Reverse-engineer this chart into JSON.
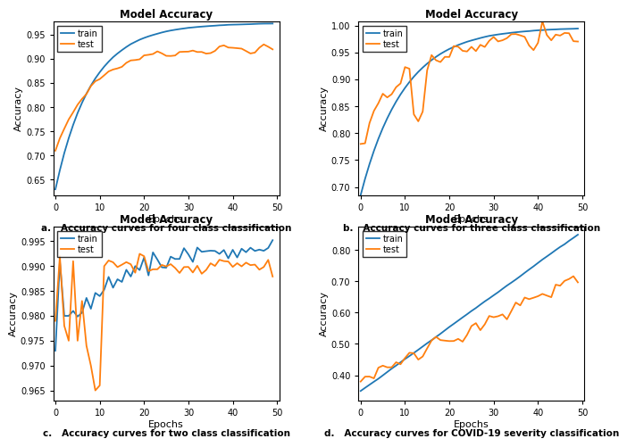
{
  "train_color": "#1f77b4",
  "test_color": "#ff7f0e",
  "xlabel": "Epochs",
  "ylabel": "Accuracy",
  "subplot_title": "Model Accuracy",
  "legend_labels": [
    "train",
    "test"
  ],
  "background_color": "#ffffff",
  "captions": [
    "a.   Accuracy curves for four class classification",
    "b.   Accuracy curves for three class classification",
    "c.   Accuracy curves for two class classification",
    "d.   Accuracy curves for COVID-19 severity classification"
  ],
  "panels": [
    {
      "yticks": [
        0.65,
        0.7,
        0.75,
        0.8,
        0.85,
        0.9,
        0.95
      ],
      "ylim": [
        0.618,
        0.978
      ],
      "legend_loc": "upper left"
    },
    {
      "yticks": [
        0.7,
        0.75,
        0.8,
        0.85,
        0.9,
        0.95,
        1.0
      ],
      "ylim": [
        0.685,
        1.008
      ],
      "legend_loc": "upper left"
    },
    {
      "yticks": [
        0.965,
        0.97,
        0.975,
        0.98,
        0.985,
        0.99,
        0.995
      ],
      "ylim": [
        0.963,
        0.998
      ],
      "legend_loc": "upper left"
    },
    {
      "yticks": [
        0.4,
        0.5,
        0.6,
        0.7,
        0.8
      ],
      "ylim": [
        0.32,
        0.875
      ],
      "legend_loc": "upper left"
    }
  ]
}
